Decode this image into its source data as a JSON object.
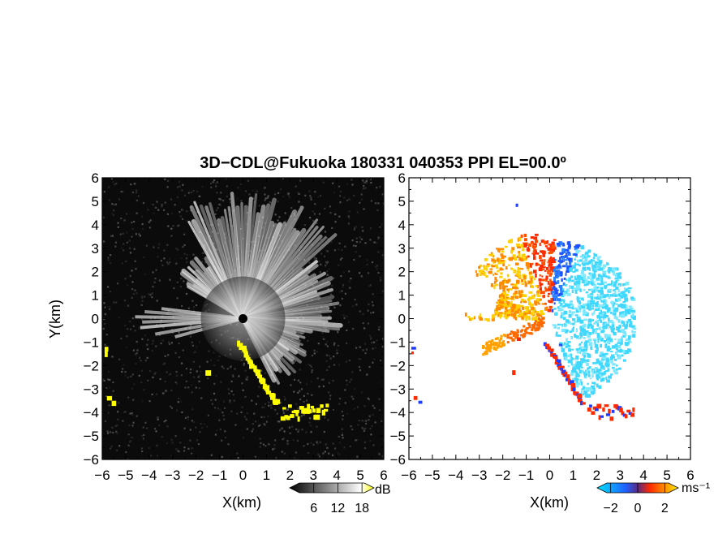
{
  "chart_data": [
    {
      "type": "heatmap",
      "panel": "left",
      "title": "3D−CDL@Fukuoka 180331 040353 PPI EL=00.0º",
      "xlabel": "X(km)",
      "ylabel": "Y(km)",
      "xlim": [
        -6,
        6
      ],
      "ylim": [
        -6,
        6
      ],
      "xticks": [
        "−6",
        "−5",
        "−4",
        "−3",
        "−2",
        "−1",
        "0",
        "1",
        "2",
        "3",
        "4",
        "5",
        "6"
      ],
      "yticks": [
        "6",
        "5",
        "4",
        "3",
        "2",
        "1",
        "0",
        "−1",
        "−2",
        "−3",
        "−4",
        "−5",
        "−6"
      ],
      "colorbar": {
        "label": "dB",
        "ticks": [
          "6",
          "12",
          "18"
        ],
        "range": [
          0,
          21
        ]
      },
      "colors": {
        "background": "#0a0a0a",
        "saturated": "#ffff00"
      }
    },
    {
      "type": "heatmap",
      "panel": "right",
      "xlabel": "X(km)",
      "xlim": [
        -6,
        6
      ],
      "ylim": [
        -6,
        6
      ],
      "xticks": [
        "−6",
        "−5",
        "−4",
        "−3",
        "−2",
        "−1",
        "0",
        "1",
        "2",
        "3",
        "4",
        "5",
        "6"
      ],
      "yticks": [
        "6",
        "5",
        "4",
        "3",
        "2",
        "1",
        "0",
        "−1",
        "−2",
        "−3",
        "−4",
        "−5",
        "−6"
      ],
      "colorbar": {
        "label": "ms⁻¹",
        "ticks": [
          "−2",
          "0",
          "2"
        ],
        "range": [
          -3,
          3
        ]
      },
      "colors": {
        "negative": "#00e5ff",
        "mid_negative": "#1e3cff",
        "mid_positive": "#ff2000",
        "positive": "#ffee00"
      }
    }
  ]
}
